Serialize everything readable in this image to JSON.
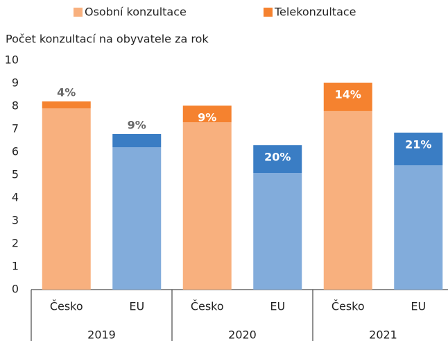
{
  "chart_data": {
    "type": "stacked_bar",
    "y_label": "Počet konzultací na obyvatele za rok",
    "categories": [
      "Česko",
      "EU",
      "Česko",
      "EU",
      "Česko",
      "EU"
    ],
    "groups": [
      "2019",
      "2020",
      "2021"
    ],
    "series": [
      {
        "name": "Osobní konzultace",
        "color": "#f8b07e",
        "bar_colors": [
          "#f8b07e",
          "#82acdb",
          "#f8b07e",
          "#82acdb",
          "#f8b07e",
          "#82acdb"
        ],
        "values": [
          7.91,
          6.21,
          7.3,
          5.09,
          7.79,
          5.42
        ]
      },
      {
        "name": "Telekonzultace",
        "color": "#f5822f",
        "bar_colors": [
          "#f5822f",
          "#3a7dc4",
          "#f5822f",
          "#3a7dc4",
          "#f5822f",
          "#3a7dc4"
        ],
        "values": [
          0.3,
          0.58,
          0.73,
          1.21,
          1.24,
          1.43
        ],
        "data_labels": [
          "4%",
          "9%",
          "9%",
          "20%",
          "14%",
          "21%"
        ]
      }
    ],
    "ylim": [
      0,
      10
    ],
    "yticks": [
      0,
      1,
      2,
      3,
      4,
      5,
      6,
      7,
      8,
      9,
      10
    ],
    "grid": false
  }
}
